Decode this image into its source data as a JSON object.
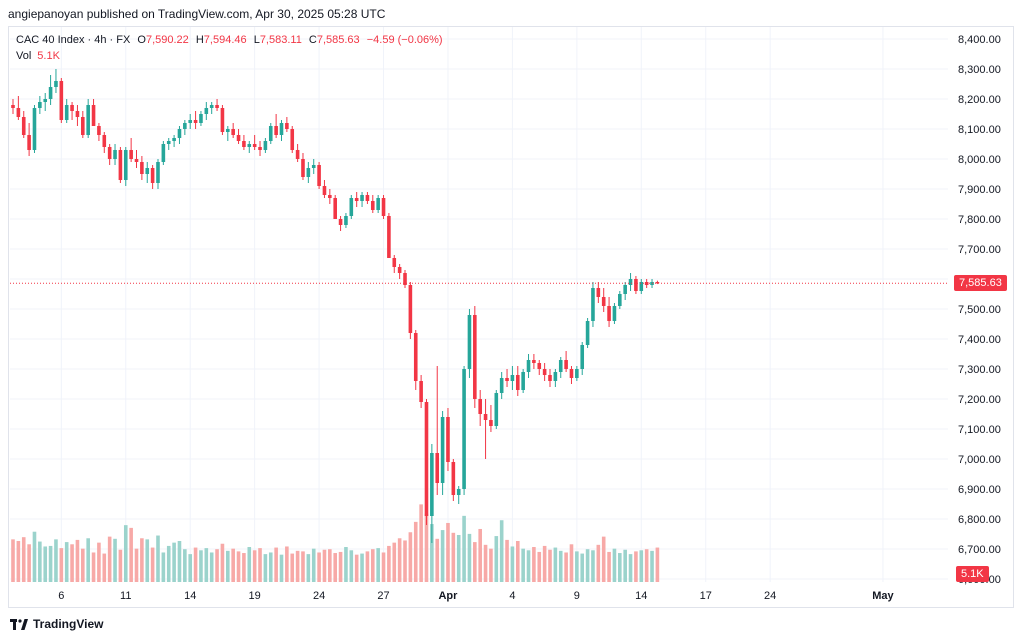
{
  "header": {
    "published": "angiepanoyan published on TradingView.com, Apr 30, 2025 05:28 UTC"
  },
  "legend": {
    "symbol": "CAC 40 Index · 4h · FX",
    "o_label": "O",
    "o": "7,590.22",
    "h_label": "H",
    "h": "7,594.46",
    "l_label": "L",
    "l": "7,583.11",
    "c_label": "C",
    "c": "7,585.63",
    "change": "−4.59 (−0.06%)",
    "vol_label": "Vol",
    "vol": "5.1K"
  },
  "price_tag": "7,585.63",
  "volume_tag": "5.1K",
  "footer": {
    "brand": "TradingView"
  },
  "colors": {
    "up": "#26a69a",
    "down": "#f23645",
    "up_vol": "#9bd3cc",
    "down_vol": "#f7a9a7",
    "grid": "#f0f3fa"
  },
  "chart_data": {
    "type": "candlestick",
    "title": "CAC 40 Index · 4h · FX",
    "y_ticks": [
      6600,
      6700,
      6800,
      6900,
      7000,
      7100,
      7200,
      7300,
      7400,
      7500,
      7600,
      7700,
      7800,
      7900,
      8000,
      8100,
      8200,
      8300,
      8400
    ],
    "y_tick_labels": [
      "6,600.00",
      "6,700.00",
      "6,800.00",
      "6,900.00",
      "7,000.00",
      "7,100.00",
      "7,200.00",
      "7,300.00",
      "7,400.00",
      "7,500.00",
      "7,600.00",
      "7,700.00",
      "7,800.00",
      "7,900.00",
      "8,000.00",
      "8,100.00",
      "8,200.00",
      "8,300.00",
      "8,400.00"
    ],
    "ylim": [
      6590,
      8440
    ],
    "x_labels": [
      {
        "label": "6",
        "bar": 9
      },
      {
        "label": "11",
        "bar": 21
      },
      {
        "label": "14",
        "bar": 33
      },
      {
        "label": "19",
        "bar": 45
      },
      {
        "label": "24",
        "bar": 57
      },
      {
        "label": "27",
        "bar": 69
      },
      {
        "label": "Apr",
        "bar": 81
      },
      {
        "label": "4",
        "bar": 93
      },
      {
        "label": "9",
        "bar": 105
      },
      {
        "label": "14",
        "bar": 117
      },
      {
        "label": "17",
        "bar": 129
      },
      {
        "label": "24",
        "bar": 141
      },
      {
        "label": "May",
        "bar": 162
      }
    ],
    "last_close": 7585.63,
    "bars": [
      [
        8180,
        8200,
        8150,
        8170
      ],
      [
        8170,
        8210,
        8130,
        8140
      ],
      [
        8140,
        8160,
        8070,
        8080
      ],
      [
        8080,
        8120,
        8010,
        8030
      ],
      [
        8030,
        8180,
        8020,
        8170
      ],
      [
        8170,
        8210,
        8150,
        8190
      ],
      [
        8190,
        8220,
        8160,
        8200
      ],
      [
        8200,
        8280,
        8180,
        8240
      ],
      [
        8240,
        8300,
        8220,
        8260
      ],
      [
        8260,
        8270,
        8120,
        8130
      ],
      [
        8130,
        8200,
        8120,
        8180
      ],
      [
        8180,
        8190,
        8130,
        8160
      ],
      [
        8160,
        8180,
        8110,
        8140
      ],
      [
        8140,
        8160,
        8070,
        8080
      ],
      [
        8080,
        8200,
        8070,
        8180
      ],
      [
        8180,
        8200,
        8110,
        8110
      ],
      [
        8110,
        8120,
        8060,
        8080
      ],
      [
        8080,
        8090,
        8020,
        8040
      ],
      [
        8040,
        8050,
        7980,
        8000
      ],
      [
        8000,
        8050,
        7980,
        8030
      ],
      [
        8030,
        8040,
        7920,
        7930
      ],
      [
        7930,
        8040,
        7910,
        8030
      ],
      [
        8030,
        8070,
        7990,
        8000
      ],
      [
        8000,
        8030,
        7970,
        7990
      ],
      [
        7990,
        8010,
        7930,
        7950
      ],
      [
        7950,
        7990,
        7920,
        7970
      ],
      [
        7970,
        7980,
        7900,
        7920
      ],
      [
        7920,
        8000,
        7900,
        7990
      ],
      [
        7990,
        8060,
        7980,
        8050
      ],
      [
        8050,
        8070,
        8030,
        8060
      ],
      [
        8060,
        8080,
        8040,
        8070
      ],
      [
        8070,
        8110,
        8050,
        8100
      ],
      [
        8100,
        8130,
        8080,
        8120
      ],
      [
        8120,
        8150,
        8100,
        8130
      ],
      [
        8130,
        8160,
        8100,
        8120
      ],
      [
        8120,
        8160,
        8110,
        8150
      ],
      [
        8150,
        8190,
        8130,
        8170
      ],
      [
        8170,
        8190,
        8150,
        8180
      ],
      [
        8180,
        8200,
        8160,
        8170
      ],
      [
        8170,
        8180,
        8080,
        8090
      ],
      [
        8090,
        8110,
        8060,
        8100
      ],
      [
        8100,
        8120,
        8070,
        8080
      ],
      [
        8080,
        8100,
        8050,
        8060
      ],
      [
        8060,
        8080,
        8030,
        8040
      ],
      [
        8040,
        8060,
        8020,
        8050
      ],
      [
        8050,
        8080,
        8030,
        8040
      ],
      [
        8040,
        8060,
        8010,
        8030
      ],
      [
        8030,
        8070,
        8020,
        8060
      ],
      [
        8060,
        8120,
        8050,
        8110
      ],
      [
        8110,
        8150,
        8070,
        8080
      ],
      [
        8080,
        8130,
        8060,
        8120
      ],
      [
        8120,
        8140,
        8090,
        8100
      ],
      [
        8100,
        8110,
        8020,
        8030
      ],
      [
        8030,
        8050,
        7990,
        8000
      ],
      [
        8000,
        8020,
        7930,
        7940
      ],
      [
        7940,
        7990,
        7920,
        7970
      ],
      [
        7970,
        8000,
        7950,
        7980
      ],
      [
        7980,
        7990,
        7900,
        7910
      ],
      [
        7910,
        7930,
        7870,
        7880
      ],
      [
        7880,
        7900,
        7850,
        7870
      ],
      [
        7870,
        7880,
        7800,
        7800
      ],
      [
        7800,
        7810,
        7760,
        7780
      ],
      [
        7780,
        7820,
        7770,
        7810
      ],
      [
        7810,
        7880,
        7800,
        7870
      ],
      [
        7870,
        7890,
        7840,
        7860
      ],
      [
        7860,
        7890,
        7840,
        7880
      ],
      [
        7880,
        7890,
        7850,
        7860
      ],
      [
        7860,
        7880,
        7820,
        7830
      ],
      [
        7830,
        7880,
        7820,
        7870
      ],
      [
        7870,
        7880,
        7800,
        7810
      ],
      [
        7810,
        7820,
        7680,
        7670
      ],
      [
        7670,
        7680,
        7620,
        7640
      ],
      [
        7640,
        7650,
        7600,
        7620
      ],
      [
        7620,
        7630,
        7570,
        7580
      ],
      [
        7580,
        7590,
        7400,
        7420
      ],
      [
        7420,
        7430,
        7230,
        7260
      ],
      [
        7260,
        7280,
        7170,
        7190
      ],
      [
        7190,
        7200,
        6780,
        6810
      ],
      [
        6810,
        7050,
        6720,
        7020
      ],
      [
        7020,
        7310,
        6880,
        6920
      ],
      [
        6920,
        7160,
        6880,
        7140
      ],
      [
        7140,
        7170,
        6960,
        6990
      ],
      [
        6990,
        7000,
        6860,
        6880
      ],
      [
        6880,
        6910,
        6850,
        6900
      ],
      [
        6900,
        7310,
        6880,
        7300
      ],
      [
        7300,
        7500,
        7270,
        7480
      ],
      [
        7480,
        7510,
        7170,
        7200
      ],
      [
        7200,
        7230,
        7110,
        7150
      ],
      [
        7150,
        7200,
        7000,
        7130
      ],
      [
        7130,
        7180,
        7090,
        7110
      ],
      [
        7110,
        7230,
        7100,
        7220
      ],
      [
        7220,
        7290,
        7200,
        7270
      ],
      [
        7270,
        7300,
        7240,
        7260
      ],
      [
        7260,
        7310,
        7230,
        7280
      ],
      [
        7280,
        7310,
        7210,
        7230
      ],
      [
        7230,
        7300,
        7220,
        7290
      ],
      [
        7290,
        7350,
        7270,
        7330
      ],
      [
        7330,
        7350,
        7300,
        7320
      ],
      [
        7320,
        7330,
        7280,
        7300
      ],
      [
        7300,
        7320,
        7260,
        7280
      ],
      [
        7280,
        7300,
        7240,
        7260
      ],
      [
        7260,
        7300,
        7240,
        7290
      ],
      [
        7290,
        7340,
        7270,
        7330
      ],
      [
        7330,
        7360,
        7290,
        7300
      ],
      [
        7300,
        7310,
        7250,
        7270
      ],
      [
        7270,
        7310,
        7260,
        7300
      ],
      [
        7300,
        7390,
        7280,
        7380
      ],
      [
        7380,
        7470,
        7370,
        7460
      ],
      [
        7460,
        7590,
        7440,
        7570
      ],
      [
        7570,
        7590,
        7520,
        7540
      ],
      [
        7540,
        7570,
        7490,
        7510
      ],
      [
        7510,
        7540,
        7440,
        7460
      ],
      [
        7460,
        7520,
        7450,
        7510
      ],
      [
        7510,
        7560,
        7500,
        7550
      ],
      [
        7550,
        7590,
        7530,
        7580
      ],
      [
        7580,
        7620,
        7560,
        7600
      ],
      [
        7600,
        7610,
        7550,
        7560
      ],
      [
        7560,
        7600,
        7550,
        7590
      ],
      [
        7590,
        7600,
        7570,
        7580
      ],
      [
        7580,
        7600,
        7570,
        7590
      ],
      [
        7590,
        7594.46,
        7583.11,
        7585.63
      ]
    ],
    "volume": [
      7.8,
      7.5,
      8.2,
      6.9,
      9.2,
      7.4,
      6.5,
      6.6,
      7.8,
      6.2,
      7.3,
      6.9,
      7.7,
      6.1,
      8.0,
      5.4,
      7.2,
      5.2,
      8.3,
      7.9,
      5.9,
      10.4,
      9.9,
      6.1,
      8.0,
      7.8,
      6.3,
      8.5,
      5.4,
      6.6,
      7.2,
      7.5,
      6.0,
      5.1,
      6.3,
      5.8,
      6.2,
      5.4,
      6.0,
      7.0,
      5.7,
      6.1,
      5.6,
      5.3,
      6.4,
      5.8,
      6.2,
      5.1,
      5.4,
      6.3,
      5.0,
      6.5,
      5.2,
      5.7,
      5.6,
      5.1,
      6.1,
      5.4,
      5.9,
      6.0,
      5.3,
      5.5,
      6.4,
      5.8,
      5.0,
      5.2,
      5.6,
      6.0,
      6.2,
      5.4,
      6.6,
      7.2,
      8.0,
      7.6,
      9.1,
      11.0,
      14.2,
      12.5,
      10.6,
      7.9,
      9.5,
      10.8,
      9.0,
      8.6,
      12.1,
      8.8,
      7.3,
      9.7,
      6.8,
      6.1,
      8.4,
      11.3,
      7.7,
      6.5,
      7.5,
      6.1,
      5.8,
      6.4,
      5.5,
      6.6,
      5.9,
      6.3,
      5.7,
      5.4,
      6.9,
      5.6,
      5.2,
      6.0,
      5.8,
      6.8,
      8.3,
      5.5,
      6.1,
      5.3,
      5.9,
      5.1,
      5.6,
      5.8,
      6.0,
      5.7,
      6.3,
      5.4,
      6.1,
      5.9,
      5.6,
      5.1
    ],
    "volume_max": 15
  }
}
